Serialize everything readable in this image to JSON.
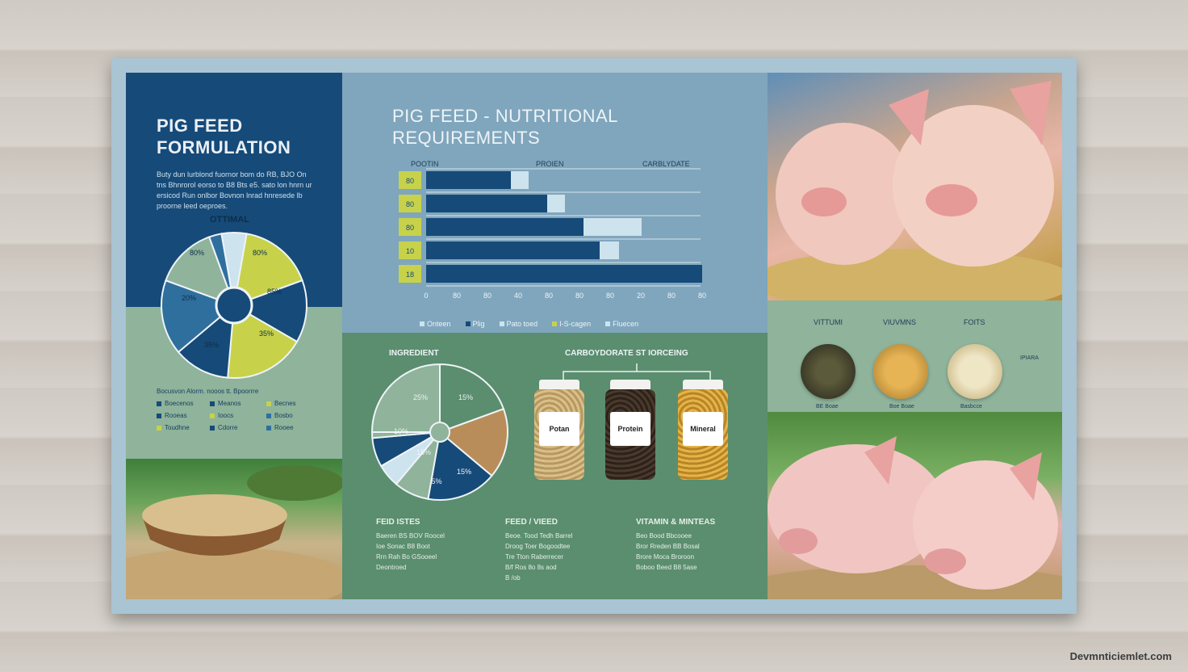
{
  "left": {
    "title_line1": "PIG FEED",
    "title_line2": "FORMULATION",
    "desc": "Buty dun lurblond fuornor bom do RB, BJO On tns Bhnrorol eorso to B8 Bts e5. sato lon hnrn ur ersicod Run onlbor Bovnon lnrad hnresede lb proorne leed oeproes.",
    "optimal_label": "OTTIMAL",
    "pie_labels": [
      "80%",
      "80%",
      "85%",
      "20%",
      "35%",
      "35%"
    ],
    "legend_header": "Bocusvon Alorm. nooos tt. Bpoorrre",
    "legend_items": [
      "Boecenos",
      "Meanos",
      "Becnes",
      "Rooeas",
      "Ioocs",
      "Bosbo",
      "Toudhne",
      "Cdorre",
      "Rooee"
    ]
  },
  "middle_top": {
    "title_line1": "PIG FEED - NUTRITIONAL",
    "title_line2": "REQUIREMENTS",
    "col_headers": [
      "POOTIN",
      "PROIEN",
      "CARBLYDATE"
    ],
    "row_labels": [
      "80",
      "80",
      "80",
      "10",
      "18"
    ],
    "x_ticks": [
      "0",
      "80",
      "80",
      "40",
      "80",
      "80",
      "80",
      "20",
      "80",
      "80"
    ],
    "legend": [
      "Onteen",
      "Plig",
      "Pato toed",
      "I-S-cagen",
      "Fluecen"
    ]
  },
  "middle_bottom": {
    "ingredient_label": "INGREDIENT",
    "carb_label": "CARBOYDORATE ST IORCEING",
    "pie_labels": [
      "25%",
      "15%",
      "10%",
      "15%",
      "15%",
      "5%"
    ],
    "jars": [
      "Potan",
      "Protein",
      "Mineral"
    ],
    "col1": {
      "header": "FEID ISTES",
      "rows": [
        "Baeren BS BOV Roocel",
        "Ioe Sonac B8 Boot",
        "Rrn Rah Bo GSooeel",
        "Deontroed"
      ]
    },
    "col2": {
      "header": "FEED / VIEED",
      "rows": [
        "Beoe. Tood Tedh Barrel",
        "Droog Toer Bogoodtee",
        "Tre Tton Raberrecer",
        "B/f Ros 8o 8s aod",
        "B /ob"
      ]
    },
    "col3": {
      "header": "VITAMIN & MINTEAS",
      "rows": [
        "Beo Bood Bbcooee",
        "Bror Rreden BB Bosal",
        "Brore Moca Broroon",
        "Boboo Beed B8 5ase"
      ]
    }
  },
  "right_mid": {
    "headers": [
      "VITTUMI",
      "VIUVMNS",
      "FOITS"
    ],
    "captions": [
      "BE Boae",
      "Boe Boae",
      "Basbcce"
    ],
    "extra": "IPIARA"
  },
  "watermark": "Devmnticiemlet.com",
  "colors": {
    "navy": "#164a78",
    "light_blue": "#cde3ee",
    "lime": "#c7d24a",
    "sage": "#8fb39b",
    "forest": "#5a8e6e",
    "seed": "#c9a35a"
  }
}
